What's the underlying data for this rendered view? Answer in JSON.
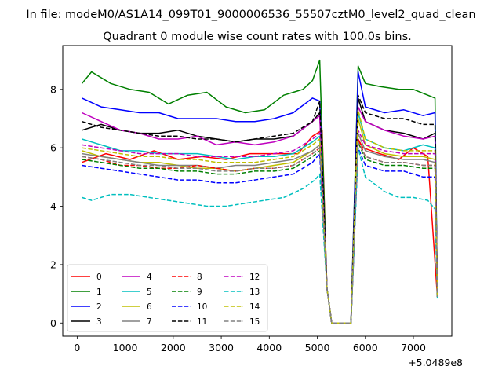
{
  "page": {
    "suptitle": "In file: modeM0/AS1A14_099T01_9000006536_55507cztM0_level2_quad_clean"
  },
  "chart_data": {
    "type": "line",
    "title": "Quadrant 0 module wise count rates with 100.0s bins.",
    "xlabel": "",
    "ylabel": "",
    "x_offset_label": "+5.0489e8",
    "xlim": [
      -300,
      7800
    ],
    "ylim": [
      -0.45,
      9.5
    ],
    "xticks": [
      0,
      1000,
      2000,
      3000,
      4000,
      5000,
      6000,
      7000
    ],
    "yticks": [
      0,
      2,
      4,
      6,
      8
    ],
    "legend_position": "lower-left",
    "legend_columns": 4,
    "series": [
      {
        "name": "0",
        "color": "#ff0000",
        "dash": "solid",
        "x": [
          100,
          600,
          1100,
          1600,
          2100,
          2600,
          3100,
          3600,
          4100,
          4600,
          4900,
          5100,
          5200,
          5300,
          5700,
          5850,
          5950,
          6300,
          6700,
          7000,
          7300,
          7500
        ],
        "y": [
          5.5,
          5.8,
          5.6,
          5.9,
          5.6,
          5.7,
          5.6,
          5.8,
          5.8,
          5.8,
          6.4,
          6.6,
          1.2,
          0,
          0,
          6.3,
          6.0,
          5.8,
          5.6,
          6.0,
          5.7,
          0.9
        ]
      },
      {
        "name": "1",
        "color": "#008000",
        "dash": "solid",
        "x": [
          100,
          300,
          700,
          1100,
          1500,
          1900,
          2300,
          2700,
          3100,
          3500,
          3900,
          4300,
          4700,
          4900,
          5050,
          5200,
          5300,
          5700,
          5850,
          6000,
          6300,
          6700,
          7000,
          7300,
          7450,
          7500
        ],
        "y": [
          8.2,
          8.6,
          8.2,
          8.0,
          7.9,
          7.5,
          7.8,
          7.9,
          7.4,
          7.2,
          7.3,
          7.8,
          8.0,
          8.3,
          9.0,
          1.2,
          0,
          0,
          8.8,
          8.2,
          8.1,
          8.0,
          8.0,
          7.8,
          7.7,
          0.9
        ]
      },
      {
        "name": "2",
        "color": "#0000ff",
        "dash": "solid",
        "x": [
          100,
          500,
          900,
          1300,
          1700,
          2100,
          2500,
          2900,
          3300,
          3700,
          4100,
          4500,
          4900,
          5050,
          5200,
          5300,
          5700,
          5850,
          6000,
          6400,
          6800,
          7200,
          7450,
          7500
        ],
        "y": [
          7.7,
          7.4,
          7.3,
          7.2,
          7.2,
          7.0,
          7.0,
          7.0,
          6.9,
          6.9,
          7.0,
          7.2,
          7.7,
          7.6,
          1.2,
          0,
          0,
          8.6,
          7.4,
          7.2,
          7.3,
          7.1,
          7.2,
          0.9
        ]
      },
      {
        "name": "3",
        "color": "#000000",
        "dash": "solid",
        "x": [
          100,
          500,
          900,
          1300,
          1700,
          2100,
          2500,
          2900,
          3300,
          3700,
          4100,
          4500,
          4900,
          5050,
          5200,
          5300,
          5700,
          5850,
          6000,
          6400,
          6800,
          7200,
          7450,
          7500
        ],
        "y": [
          6.6,
          6.8,
          6.6,
          6.5,
          6.5,
          6.6,
          6.4,
          6.3,
          6.2,
          6.3,
          6.3,
          6.4,
          6.9,
          7.2,
          1.2,
          0,
          0,
          7.7,
          6.9,
          6.6,
          6.5,
          6.3,
          6.5,
          0.9
        ]
      },
      {
        "name": "4",
        "color": "#bf00bf",
        "dash": "solid",
        "x": [
          100,
          500,
          900,
          1300,
          1700,
          2100,
          2500,
          2900,
          3300,
          3700,
          4100,
          4500,
          4900,
          5050,
          5200,
          5300,
          5700,
          5850,
          6000,
          6400,
          6800,
          7200,
          7450,
          7500
        ],
        "y": [
          7.2,
          6.9,
          6.6,
          6.5,
          6.3,
          6.3,
          6.4,
          6.1,
          6.2,
          6.1,
          6.2,
          6.4,
          6.9,
          7.1,
          1.2,
          0,
          0,
          7.4,
          6.9,
          6.6,
          6.4,
          6.3,
          6.4,
          0.9
        ]
      },
      {
        "name": "5",
        "color": "#00bfbf",
        "dash": "solid",
        "x": [
          100,
          500,
          900,
          1300,
          1700,
          2100,
          2500,
          2900,
          3300,
          3700,
          4100,
          4500,
          4900,
          5050,
          5200,
          5300,
          5700,
          5850,
          6000,
          6400,
          6800,
          7200,
          7450,
          7500
        ],
        "y": [
          6.3,
          6.1,
          5.9,
          5.9,
          5.8,
          5.8,
          5.8,
          5.7,
          5.6,
          5.7,
          5.7,
          5.8,
          6.2,
          6.4,
          1.2,
          0,
          0,
          7.2,
          6.3,
          6.0,
          5.9,
          6.1,
          6.0,
          0.9
        ]
      },
      {
        "name": "6",
        "color": "#bfbf00",
        "dash": "solid",
        "x": [
          100,
          500,
          900,
          1300,
          1700,
          2100,
          2500,
          2900,
          3300,
          3700,
          4100,
          4500,
          4900,
          5050,
          5200,
          5300,
          5700,
          5850,
          6000,
          6400,
          6800,
          7200,
          7450,
          7500
        ],
        "y": [
          5.9,
          5.7,
          5.6,
          5.5,
          5.5,
          5.4,
          5.3,
          5.3,
          5.2,
          5.3,
          5.4,
          5.5,
          5.9,
          6.1,
          1.2,
          0,
          0,
          7.0,
          6.1,
          5.8,
          5.7,
          5.7,
          5.6,
          0.9
        ]
      },
      {
        "name": "7",
        "color": "#808080",
        "dash": "solid",
        "x": [
          100,
          500,
          900,
          1300,
          1700,
          2100,
          2500,
          2900,
          3300,
          3700,
          4100,
          4500,
          4900,
          5050,
          5200,
          5300,
          5700,
          5850,
          6000,
          6400,
          6800,
          7200,
          7450,
          7500
        ],
        "y": [
          5.8,
          5.7,
          5.6,
          5.5,
          5.4,
          5.4,
          5.4,
          5.3,
          5.4,
          5.4,
          5.5,
          5.6,
          5.9,
          6.1,
          1.2,
          0,
          0,
          6.5,
          5.9,
          5.7,
          5.6,
          5.6,
          5.5,
          0.9
        ]
      },
      {
        "name": "8",
        "color": "#ff0000",
        "dash": "dashed",
        "x": [
          100,
          500,
          900,
          1300,
          1700,
          2100,
          2500,
          2900,
          3300,
          3700,
          4100,
          4500,
          4900,
          5050,
          5200,
          5300,
          5700,
          5850,
          6000,
          6400,
          6800,
          7200,
          7450,
          7500
        ],
        "y": [
          5.7,
          5.6,
          5.4,
          5.4,
          5.3,
          5.3,
          5.4,
          5.3,
          5.2,
          5.3,
          5.3,
          5.4,
          5.8,
          6.0,
          1.2,
          0,
          0,
          6.3,
          5.7,
          5.5,
          5.5,
          5.4,
          5.4,
          0.9
        ]
      },
      {
        "name": "9",
        "color": "#008000",
        "dash": "dashed",
        "x": [
          100,
          500,
          900,
          1300,
          1700,
          2100,
          2500,
          2900,
          3300,
          3700,
          4100,
          4500,
          4900,
          5050,
          5200,
          5300,
          5700,
          5850,
          6000,
          6400,
          6800,
          7200,
          7450,
          7500
        ],
        "y": [
          5.6,
          5.5,
          5.4,
          5.3,
          5.3,
          5.2,
          5.2,
          5.1,
          5.1,
          5.2,
          5.2,
          5.3,
          5.7,
          5.9,
          1.2,
          0,
          0,
          6.2,
          5.6,
          5.4,
          5.4,
          5.3,
          5.3,
          0.9
        ]
      },
      {
        "name": "10",
        "color": "#0000ff",
        "dash": "dashed",
        "x": [
          100,
          500,
          900,
          1300,
          1700,
          2100,
          2500,
          2900,
          3300,
          3700,
          4100,
          4500,
          4900,
          5050,
          5200,
          5300,
          5700,
          5850,
          6000,
          6400,
          6800,
          7200,
          7450,
          7500
        ],
        "y": [
          5.4,
          5.3,
          5.2,
          5.1,
          5.0,
          4.9,
          4.9,
          4.8,
          4.8,
          4.9,
          5.0,
          5.1,
          5.5,
          5.8,
          1.2,
          0,
          0,
          6.0,
          5.4,
          5.2,
          5.2,
          5.0,
          5.0,
          0.9
        ]
      },
      {
        "name": "11",
        "color": "#000000",
        "dash": "dashed",
        "x": [
          100,
          500,
          900,
          1300,
          1700,
          2100,
          2500,
          2900,
          3300,
          3700,
          4100,
          4500,
          4900,
          5050,
          5200,
          5300,
          5700,
          5850,
          6000,
          6400,
          6800,
          7200,
          7450,
          7500
        ],
        "y": [
          6.9,
          6.7,
          6.6,
          6.5,
          6.4,
          6.4,
          6.3,
          6.3,
          6.2,
          6.3,
          6.4,
          6.5,
          6.9,
          7.6,
          1.2,
          0,
          0,
          7.8,
          7.2,
          7.0,
          7.0,
          6.8,
          6.8,
          0.9
        ]
      },
      {
        "name": "12",
        "color": "#bf00bf",
        "dash": "dashed",
        "x": [
          100,
          500,
          900,
          1300,
          1700,
          2100,
          2500,
          2900,
          3300,
          3700,
          4100,
          4500,
          4900,
          5050,
          5200,
          5300,
          5700,
          5850,
          6000,
          6400,
          6800,
          7200,
          7450,
          7500
        ],
        "y": [
          6.1,
          6.0,
          5.9,
          5.8,
          5.8,
          5.8,
          5.7,
          5.7,
          5.7,
          5.7,
          5.8,
          5.9,
          6.3,
          6.5,
          1.2,
          0,
          0,
          6.6,
          6.1,
          5.9,
          5.8,
          5.8,
          5.8,
          0.9
        ]
      },
      {
        "name": "13",
        "color": "#00bfbf",
        "dash": "dashed",
        "x": [
          100,
          300,
          700,
          1100,
          1500,
          1900,
          2300,
          2700,
          3100,
          3500,
          3900,
          4300,
          4700,
          4950,
          5050,
          5200,
          5300,
          5700,
          5850,
          6000,
          6400,
          6700,
          7000,
          7300,
          7450,
          7500
        ],
        "y": [
          4.3,
          4.2,
          4.4,
          4.4,
          4.3,
          4.2,
          4.1,
          4.0,
          4.0,
          4.1,
          4.2,
          4.3,
          4.6,
          4.9,
          5.1,
          1.2,
          0,
          0,
          6.0,
          5.0,
          4.5,
          4.3,
          4.3,
          4.2,
          3.9,
          0.8
        ]
      },
      {
        "name": "14",
        "color": "#bfbf00",
        "dash": "dashed",
        "x": [
          100,
          500,
          900,
          1300,
          1700,
          2100,
          2500,
          2900,
          3300,
          3700,
          4100,
          4500,
          4900,
          5050,
          5200,
          5300,
          5700,
          5850,
          6000,
          6400,
          6800,
          7200,
          7450,
          7500
        ],
        "y": [
          6.0,
          5.9,
          5.8,
          5.7,
          5.7,
          5.6,
          5.6,
          5.5,
          5.5,
          5.5,
          5.6,
          5.7,
          6.1,
          6.3,
          1.2,
          0,
          0,
          7.3,
          6.3,
          6.0,
          5.9,
          5.9,
          5.9,
          0.9
        ]
      },
      {
        "name": "15",
        "color": "#808080",
        "dash": "dashed",
        "x": [
          100,
          500,
          900,
          1300,
          1700,
          2100,
          2500,
          2900,
          3300,
          3700,
          4100,
          4500,
          4900,
          5050,
          5200,
          5300,
          5700,
          5850,
          6000,
          6400,
          6800,
          7200,
          7450,
          7500
        ],
        "y": [
          5.7,
          5.6,
          5.5,
          5.4,
          5.4,
          5.3,
          5.3,
          5.2,
          5.2,
          5.3,
          5.3,
          5.4,
          5.8,
          6.0,
          1.2,
          0,
          0,
          6.2,
          5.7,
          5.5,
          5.5,
          5.4,
          5.4,
          0.9
        ]
      }
    ]
  }
}
